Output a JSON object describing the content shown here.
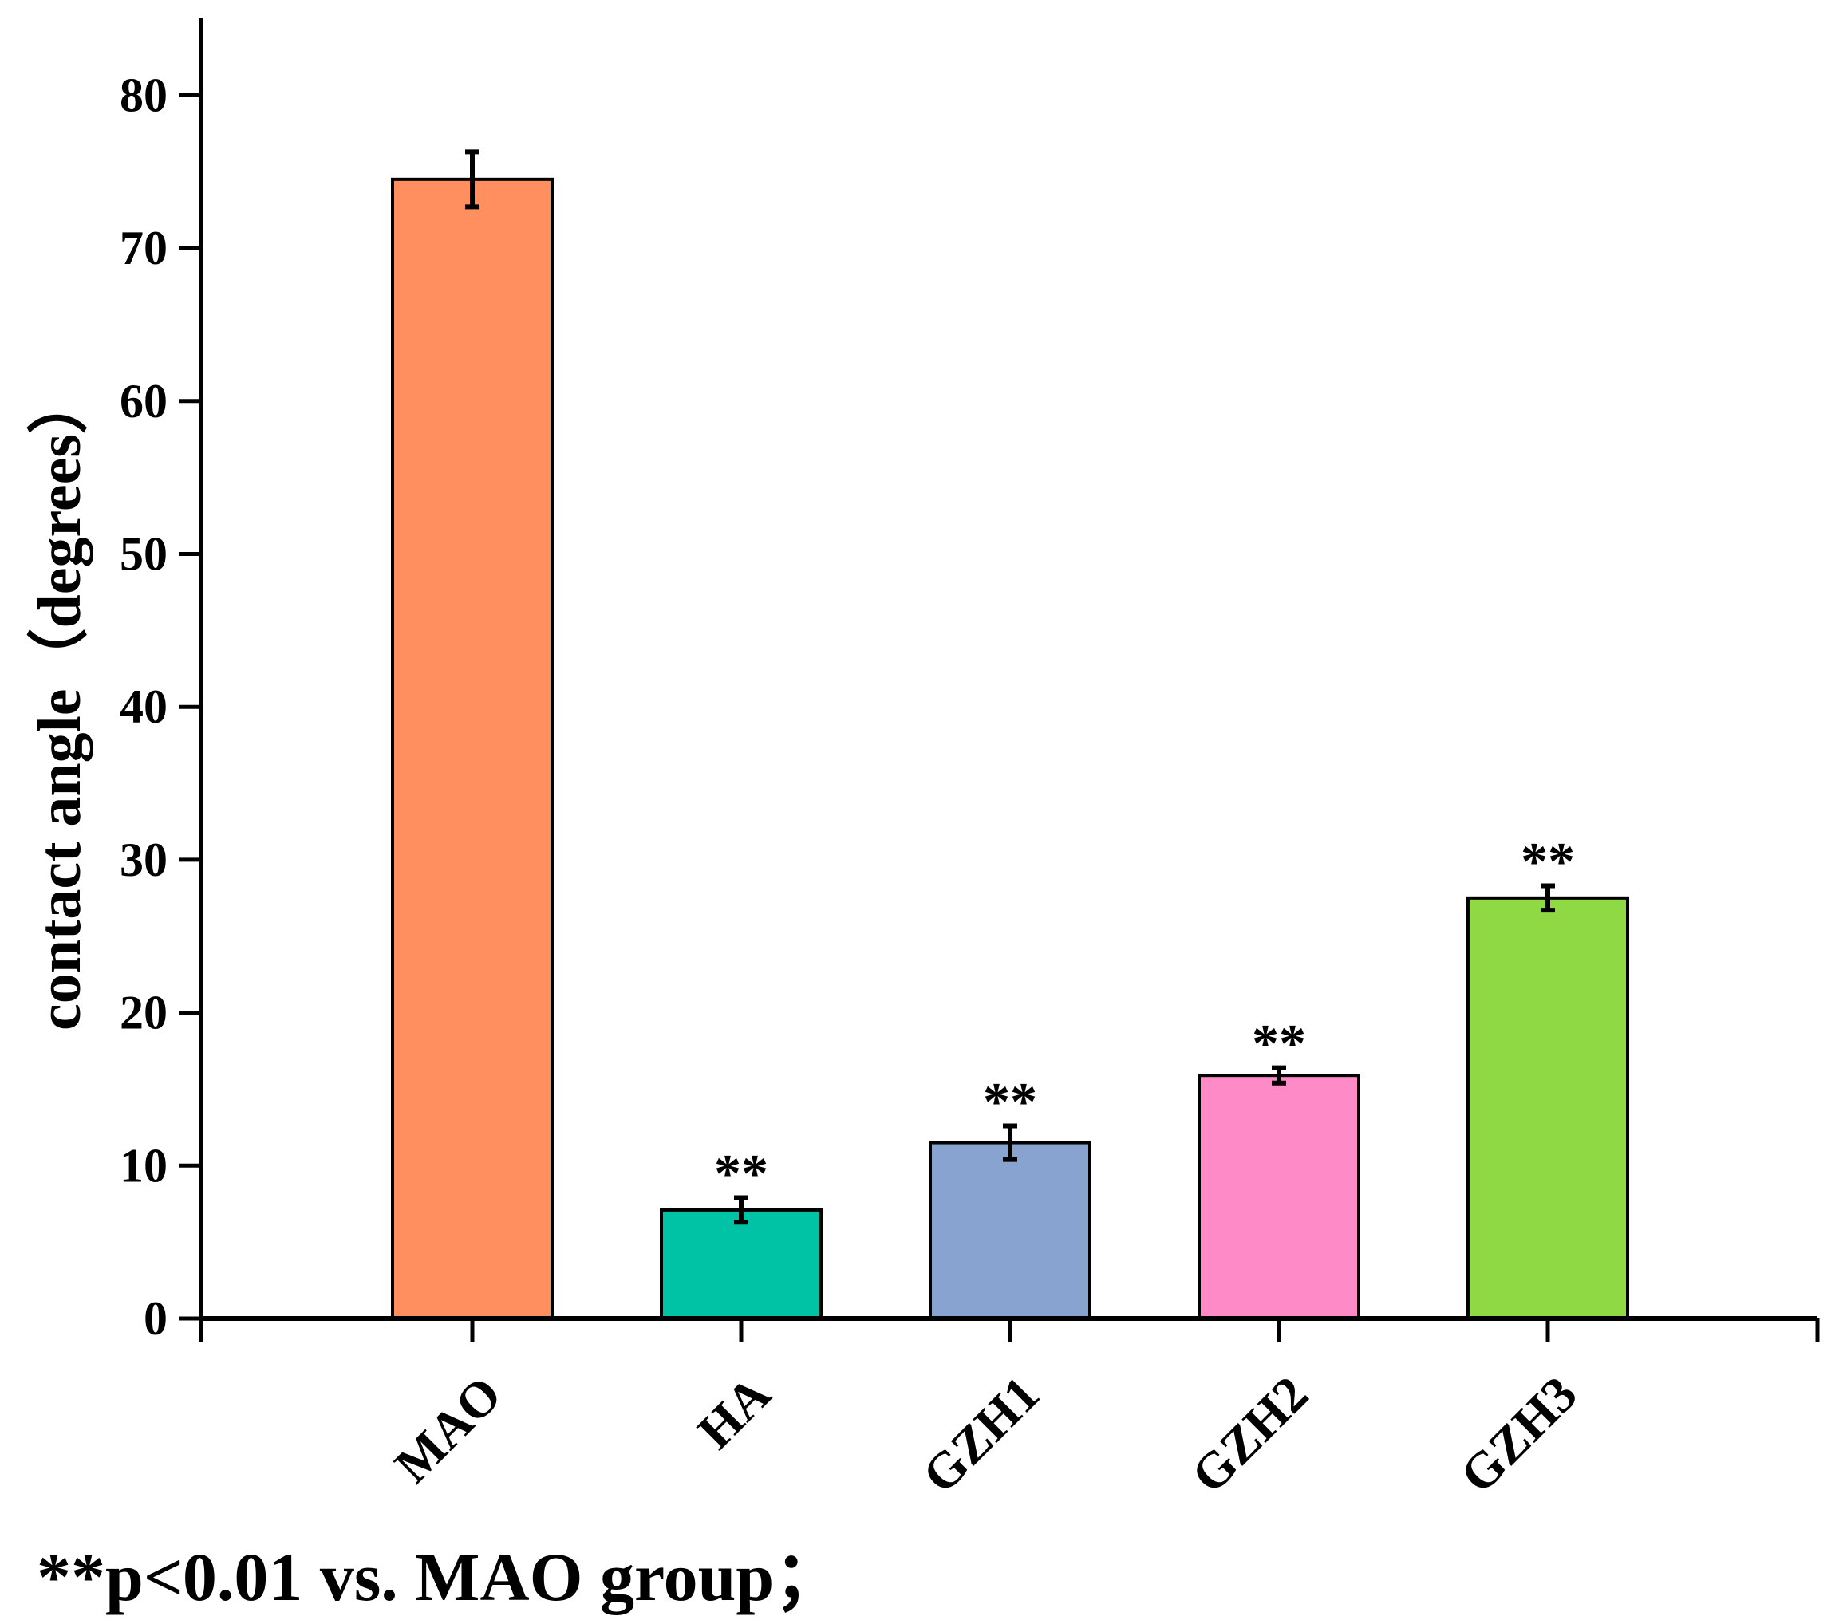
{
  "chart_data": {
    "type": "bar",
    "title": "",
    "xlabel": "",
    "ylabel": "contact angle（degrees）",
    "ylim": [
      0,
      85
    ],
    "yticks": [
      0,
      10,
      20,
      30,
      40,
      50,
      60,
      70,
      80
    ],
    "categories": [
      "MAO",
      "HA",
      "GZH1",
      "GZH2",
      "GZH3"
    ],
    "values": [
      74.5,
      7.1,
      11.5,
      15.9,
      27.5
    ],
    "errors": [
      1.8,
      0.8,
      1.1,
      0.5,
      0.8
    ],
    "colors": [
      "#FF8F5F",
      "#00C2A4",
      "#88A3CF",
      "#FF8AC8",
      "#8FD944"
    ],
    "annotations": [
      "",
      "**",
      "**",
      "**",
      "**"
    ],
    "grid": false,
    "legend": "none"
  },
  "footnote": "**p<0.01 vs. MAO group；"
}
